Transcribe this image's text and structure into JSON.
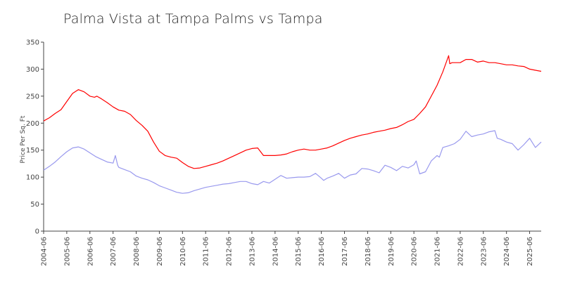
{
  "chart_data": {
    "type": "line",
    "title": "Palma Vista at Tampa Palms vs Tampa",
    "xlabel": "",
    "ylabel": "Price Per Sq. Ft",
    "ylim": [
      0,
      350
    ],
    "yticks": [
      0,
      50,
      100,
      150,
      200,
      250,
      300,
      350
    ],
    "xlim": [
      2004.5,
      2026.0
    ],
    "xticks": [
      "2004-06",
      "2005-06",
      "2006-06",
      "2007-06",
      "2008-06",
      "2009-06",
      "2010-06",
      "2011-06",
      "2012-06",
      "2013-06",
      "2014-06",
      "2015-06",
      "2016-06",
      "2017-06",
      "2018-06",
      "2019-06",
      "2020-06",
      "2021-06",
      "2022-06",
      "2023-06",
      "2024-06",
      "2025-06"
    ],
    "grid": false,
    "legend": "none",
    "series": [
      {
        "name": "Palma Vista at Tampa Palms",
        "color": "#ff0000",
        "x": [
          2004.5,
          2004.75,
          2005.0,
          2005.25,
          2005.5,
          2005.75,
          2006.0,
          2006.25,
          2006.5,
          2006.7,
          2006.8,
          2007.0,
          2007.25,
          2007.5,
          2007.75,
          2008.0,
          2008.25,
          2008.5,
          2008.75,
          2009.0,
          2009.25,
          2009.5,
          2009.75,
          2010.0,
          2010.25,
          2010.5,
          2010.75,
          2011.0,
          2011.25,
          2011.5,
          2011.75,
          2012.0,
          2012.25,
          2012.5,
          2012.75,
          2013.0,
          2013.25,
          2013.5,
          2013.75,
          2014.0,
          2014.2,
          2014.5,
          2014.75,
          2015.0,
          2015.25,
          2015.5,
          2015.75,
          2016.0,
          2016.25,
          2016.5,
          2016.75,
          2017.0,
          2017.25,
          2017.5,
          2017.75,
          2018.0,
          2018.25,
          2018.5,
          2018.75,
          2019.0,
          2019.25,
          2019.5,
          2019.75,
          2020.0,
          2020.25,
          2020.5,
          2020.75,
          2021.0,
          2021.25,
          2021.5,
          2021.75,
          2022.0,
          2022.05,
          2022.15,
          2022.3,
          2022.5,
          2022.75,
          2023.0,
          2023.25,
          2023.5,
          2023.75,
          2024.0,
          2024.25,
          2024.5,
          2024.75,
          2025.0,
          2025.25,
          2025.5,
          2025.75,
          2026.0
        ],
        "y": [
          204,
          210,
          218,
          225,
          240,
          255,
          262,
          258,
          250,
          248,
          250,
          245,
          238,
          230,
          224,
          222,
          216,
          205,
          196,
          185,
          165,
          148,
          140,
          137,
          135,
          127,
          120,
          116,
          117,
          120,
          123,
          126,
          130,
          135,
          140,
          145,
          150,
          153,
          154,
          140,
          140,
          140,
          141,
          143,
          147,
          150,
          152,
          150,
          150,
          152,
          154,
          158,
          163,
          168,
          172,
          175,
          178,
          180,
          183,
          185,
          187,
          190,
          192,
          197,
          203,
          207,
          218,
          230,
          250,
          270,
          295,
          325,
          310,
          312,
          312,
          312,
          318,
          318,
          313,
          315,
          312,
          312,
          310,
          308,
          308,
          306,
          305,
          300,
          298,
          296
        ]
      },
      {
        "name": "Tampa",
        "color": "#9999ee",
        "x": [
          2004.5,
          2004.75,
          2005.0,
          2005.25,
          2005.5,
          2005.75,
          2006.0,
          2006.25,
          2006.5,
          2006.75,
          2007.0,
          2007.25,
          2007.5,
          2007.6,
          2007.7,
          2007.75,
          2008.0,
          2008.25,
          2008.5,
          2008.75,
          2009.0,
          2009.25,
          2009.5,
          2009.75,
          2010.0,
          2010.25,
          2010.5,
          2010.75,
          2011.0,
          2011.25,
          2011.5,
          2011.75,
          2012.0,
          2012.25,
          2012.5,
          2012.75,
          2013.0,
          2013.25,
          2013.5,
          2013.75,
          2014.0,
          2014.25,
          2014.5,
          2014.75,
          2015.0,
          2015.25,
          2015.5,
          2015.75,
          2016.0,
          2016.25,
          2016.5,
          2016.6,
          2016.75,
          2017.0,
          2017.25,
          2017.5,
          2017.75,
          2018.0,
          2018.25,
          2018.5,
          2018.75,
          2019.0,
          2019.25,
          2019.5,
          2019.75,
          2020.0,
          2020.25,
          2020.5,
          2020.6,
          2020.75,
          2021.0,
          2021.25,
          2021.5,
          2021.6,
          2021.75,
          2022.0,
          2022.25,
          2022.5,
          2022.75,
          2023.0,
          2023.25,
          2023.5,
          2023.75,
          2024.0,
          2024.1,
          2024.25,
          2024.5,
          2024.75,
          2025.0,
          2025.25,
          2025.5,
          2025.75,
          2026.0
        ],
        "y": [
          113,
          120,
          128,
          138,
          147,
          154,
          156,
          152,
          145,
          138,
          133,
          128,
          126,
          140,
          122,
          118,
          114,
          110,
          102,
          98,
          95,
          90,
          84,
          80,
          76,
          72,
          70,
          71,
          75,
          78,
          81,
          83,
          85,
          87,
          88,
          90,
          92,
          92,
          88,
          86,
          92,
          89,
          96,
          103,
          98,
          99,
          100,
          100,
          101,
          107,
          98,
          94,
          98,
          102,
          107,
          98,
          104,
          106,
          116,
          115,
          112,
          108,
          122,
          118,
          112,
          120,
          117,
          123,
          130,
          106,
          110,
          130,
          140,
          137,
          155,
          158,
          162,
          170,
          185,
          175,
          178,
          180,
          184,
          186,
          172,
          170,
          165,
          162,
          150,
          160,
          172,
          155,
          165
        ]
      }
    ]
  }
}
